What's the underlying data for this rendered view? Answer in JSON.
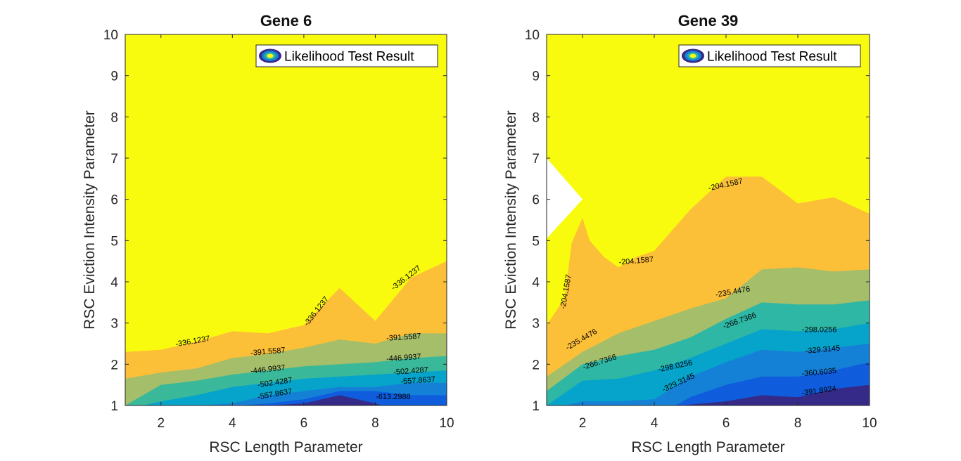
{
  "colors": {
    "levels": [
      "#352a87",
      "#0f5cdd",
      "#1481d6",
      "#06a4ca",
      "#2eb7a4",
      "#87bf77",
      "#d1bb59",
      "#fcbf38",
      "#f9fb0e"
    ],
    "axes": "#262626",
    "background": "#ffffff"
  },
  "chart_data": [
    {
      "type": "filled-contour",
      "title": "Gene 6",
      "xlabel": "RSC Length Parameter",
      "ylabel": "RSC Eviction Intensity Parameter",
      "xlim": [
        1,
        10
      ],
      "ylim": [
        1,
        10
      ],
      "xticks": [
        2,
        4,
        6,
        8,
        10
      ],
      "yticks": [
        1,
        2,
        3,
        4,
        5,
        6,
        7,
        8,
        9,
        10
      ],
      "legend": {
        "label": "Likelihood Test Result",
        "position": "top-right"
      },
      "grid": false,
      "bands": [
        {
          "level": "top",
          "color": "#f9fb0e",
          "boundary": [
            [
              1,
              10
            ],
            [
              10,
              10
            ],
            [
              10,
              1
            ]
          ]
        },
        {
          "level": "-336.1237",
          "color": "#fcbf38",
          "boundary": [
            [
              1,
              2.3
            ],
            [
              2,
              2.35
            ],
            [
              3,
              2.55
            ],
            [
              4,
              2.8
            ],
            [
              5,
              2.75
            ],
            [
              6,
              2.95
            ],
            [
              7,
              3.85
            ],
            [
              8,
              3.05
            ],
            [
              9,
              4.1
            ],
            [
              10,
              4.5
            ]
          ]
        },
        {
          "level": "-391.5587",
          "color": "#a5be6a",
          "boundary": [
            [
              1,
              1.65
            ],
            [
              2,
              1.8
            ],
            [
              3,
              1.9
            ],
            [
              4,
              2.15
            ],
            [
              5,
              2.25
            ],
            [
              6,
              2.4
            ],
            [
              7,
              2.6
            ],
            [
              8,
              2.5
            ],
            [
              9,
              2.75
            ],
            [
              10,
              2.75
            ]
          ]
        },
        {
          "level": "-446.9937",
          "color": "#3ab89a",
          "boundary": [
            [
              1,
              1.0
            ],
            [
              2,
              1.5
            ],
            [
              3,
              1.6
            ],
            [
              4,
              1.75
            ],
            [
              5,
              1.85
            ],
            [
              6,
              1.95
            ],
            [
              7,
              2.0
            ],
            [
              8,
              2.05
            ],
            [
              9,
              2.15
            ],
            [
              10,
              2.2
            ]
          ]
        },
        {
          "level": "-502.4287",
          "color": "#06a4ca",
          "boundary": [
            [
              1.5,
              1.0
            ],
            [
              2,
              1.1
            ],
            [
              3,
              1.25
            ],
            [
              4,
              1.45
            ],
            [
              5,
              1.55
            ],
            [
              6,
              1.65
            ],
            [
              7,
              1.7
            ],
            [
              8,
              1.75
            ],
            [
              9,
              1.8
            ],
            [
              10,
              1.85
            ]
          ]
        },
        {
          "level": "-557.8637",
          "color": "#1481d6",
          "boundary": [
            [
              3,
              1.0
            ],
            [
              4,
              1.05
            ],
            [
              5,
              1.25
            ],
            [
              6,
              1.35
            ],
            [
              7,
              1.45
            ],
            [
              8,
              1.45
            ],
            [
              9,
              1.55
            ],
            [
              10,
              1.55
            ]
          ]
        },
        {
          "level": "-613.2988",
          "color": "#0f5cdd",
          "boundary": [
            [
              4.2,
              1.0
            ],
            [
              5,
              1.05
            ],
            [
              6,
              1.15
            ],
            [
              7,
              1.35
            ],
            [
              8,
              1.35
            ],
            [
              9,
              1.25
            ],
            [
              10,
              1.25
            ]
          ]
        },
        {
          "level": "bottom",
          "color": "#352a87",
          "boundary": [
            [
              5,
              1.0
            ],
            [
              6,
              1.05
            ],
            [
              7,
              1.25
            ],
            [
              8,
              1.05
            ],
            [
              8.2,
              1.0
            ]
          ]
        }
      ],
      "contour_labels": [
        {
          "text": "-336.1237",
          "x": 2.9,
          "y": 2.5,
          "angle": -10
        },
        {
          "text": "-336.1237",
          "x": 6.4,
          "y": 3.25,
          "angle": -52
        },
        {
          "text": "-336.1237",
          "x": 8.9,
          "y": 4.05,
          "angle": -38
        },
        {
          "text": "-391.5587",
          "x": 5.0,
          "y": 2.25,
          "angle": -5
        },
        {
          "text": "-391.5587",
          "x": 8.8,
          "y": 2.6,
          "angle": -4
        },
        {
          "text": "-446.9937",
          "x": 5.0,
          "y": 1.82,
          "angle": -6
        },
        {
          "text": "-446.9937",
          "x": 8.8,
          "y": 2.1,
          "angle": -4
        },
        {
          "text": "-502.4287",
          "x": 5.2,
          "y": 1.5,
          "angle": -8
        },
        {
          "text": "-502.4287",
          "x": 9.0,
          "y": 1.78,
          "angle": -4
        },
        {
          "text": "-557.8637",
          "x": 5.2,
          "y": 1.22,
          "angle": -10
        },
        {
          "text": "-557.8637",
          "x": 9.2,
          "y": 1.55,
          "angle": -4
        },
        {
          "text": "-613.2988",
          "x": 8.5,
          "y": 1.15,
          "angle": 0
        }
      ]
    },
    {
      "type": "filled-contour",
      "title": "Gene 39",
      "xlabel": "RSC Length Parameter",
      "ylabel": "RSC Eviction Intensity Parameter",
      "xlim": [
        1,
        10
      ],
      "ylim": [
        1,
        10
      ],
      "xticks": [
        2,
        4,
        6,
        8,
        10
      ],
      "yticks": [
        1,
        2,
        3,
        4,
        5,
        6,
        7,
        8,
        9,
        10
      ],
      "legend": {
        "label": "Likelihood Test Result",
        "position": "top-right"
      },
      "grid": false,
      "bands": [
        {
          "level": "top",
          "color": "#f9fb0e",
          "boundary": [
            [
              1,
              10
            ],
            [
              10,
              10
            ],
            [
              10,
              1
            ]
          ]
        },
        {
          "level": "-204.1587",
          "color": "#fcbf38",
          "boundary": [
            [
              1,
              2.95
            ],
            [
              1.5,
              3.6
            ],
            [
              1.7,
              4.95
            ],
            [
              2.0,
              5.55
            ],
            [
              2.2,
              5.0
            ],
            [
              2.6,
              4.6
            ],
            [
              3,
              4.35
            ],
            [
              3.5,
              4.6
            ],
            [
              4,
              4.75
            ],
            [
              5,
              5.75
            ],
            [
              6,
              6.55
            ],
            [
              7,
              6.55
            ],
            [
              8,
              5.9
            ],
            [
              9,
              6.05
            ],
            [
              10,
              5.65
            ]
          ]
        },
        {
          "level": "-235.4476",
          "color": "#a5be6a",
          "boundary": [
            [
              1,
              1.7
            ],
            [
              2,
              2.3
            ],
            [
              3,
              2.75
            ],
            [
              4,
              3.05
            ],
            [
              5,
              3.35
            ],
            [
              6,
              3.6
            ],
            [
              7,
              4.3
            ],
            [
              8,
              4.35
            ],
            [
              9,
              4.25
            ],
            [
              10,
              4.3
            ]
          ]
        },
        {
          "level": "-266.7366",
          "color": "#2eb7a4",
          "boundary": [
            [
              1,
              1.35
            ],
            [
              2,
              2.0
            ],
            [
              3,
              2.2
            ],
            [
              4,
              2.35
            ],
            [
              5,
              2.65
            ],
            [
              6,
              3.1
            ],
            [
              7,
              3.5
            ],
            [
              8,
              3.45
            ],
            [
              9,
              3.45
            ],
            [
              10,
              3.55
            ]
          ]
        },
        {
          "level": "-298.0256",
          "color": "#06a4ca",
          "boundary": [
            [
              1,
              1.0
            ],
            [
              2,
              1.6
            ],
            [
              3,
              1.65
            ],
            [
              4,
              1.85
            ],
            [
              5,
              2.15
            ],
            [
              6,
              2.5
            ],
            [
              7,
              2.85
            ],
            [
              8,
              2.8
            ],
            [
              9,
              2.85
            ],
            [
              10,
              3.0
            ]
          ]
        },
        {
          "level": "-329.3145",
          "color": "#1481d6",
          "boundary": [
            [
              1.5,
              1.0
            ],
            [
              2,
              1.1
            ],
            [
              3,
              1.1
            ],
            [
              4,
              1.15
            ],
            [
              5,
              1.7
            ],
            [
              6,
              2.05
            ],
            [
              7,
              2.35
            ],
            [
              8,
              2.3
            ],
            [
              9,
              2.4
            ],
            [
              10,
              2.5
            ]
          ]
        },
        {
          "level": "-360.6035",
          "color": "#0f5cdd",
          "boundary": [
            [
              4.6,
              1.0
            ],
            [
              5,
              1.2
            ],
            [
              6,
              1.5
            ],
            [
              7,
              1.7
            ],
            [
              8,
              1.7
            ],
            [
              9,
              1.85
            ],
            [
              10,
              2.05
            ]
          ]
        },
        {
          "level": "-391.8924",
          "color": "#352a87",
          "boundary": [
            [
              4.7,
              1.0
            ],
            [
              6,
              1.1
            ],
            [
              7,
              1.25
            ],
            [
              8,
              1.2
            ],
            [
              9,
              1.4
            ],
            [
              10,
              1.5
            ]
          ]
        }
      ],
      "blank_region": [
        [
          1,
          5.05
        ],
        [
          2,
          6.0
        ],
        [
          1,
          7.0
        ]
      ],
      "contour_labels": [
        {
          "text": "-204.1587",
          "x": 6.0,
          "y": 6.3,
          "angle": -12
        },
        {
          "text": "-204.1587",
          "x": 3.5,
          "y": 4.45,
          "angle": -5
        },
        {
          "text": "-204.1587",
          "x": 1.6,
          "y": 3.75,
          "angle": -80
        },
        {
          "text": "-235.4476",
          "x": 6.2,
          "y": 3.7,
          "angle": -10
        },
        {
          "text": "-235.4476",
          "x": 2.0,
          "y": 2.55,
          "angle": -30
        },
        {
          "text": "-266.7366",
          "x": 6.4,
          "y": 3.0,
          "angle": -20
        },
        {
          "text": "-266.7366",
          "x": 2.5,
          "y": 2.0,
          "angle": -18
        },
        {
          "text": "-298.0256",
          "x": 4.6,
          "y": 1.9,
          "angle": -12
        },
        {
          "text": "-298.0256",
          "x": 8.6,
          "y": 2.78,
          "angle": 0
        },
        {
          "text": "-329.3145",
          "x": 4.7,
          "y": 1.5,
          "angle": -25
        },
        {
          "text": "-329.3145",
          "x": 8.7,
          "y": 2.3,
          "angle": -5
        },
        {
          "text": "-360.6035",
          "x": 8.6,
          "y": 1.75,
          "angle": -5
        },
        {
          "text": "-391.8924",
          "x": 8.6,
          "y": 1.3,
          "angle": -8
        }
      ]
    }
  ]
}
